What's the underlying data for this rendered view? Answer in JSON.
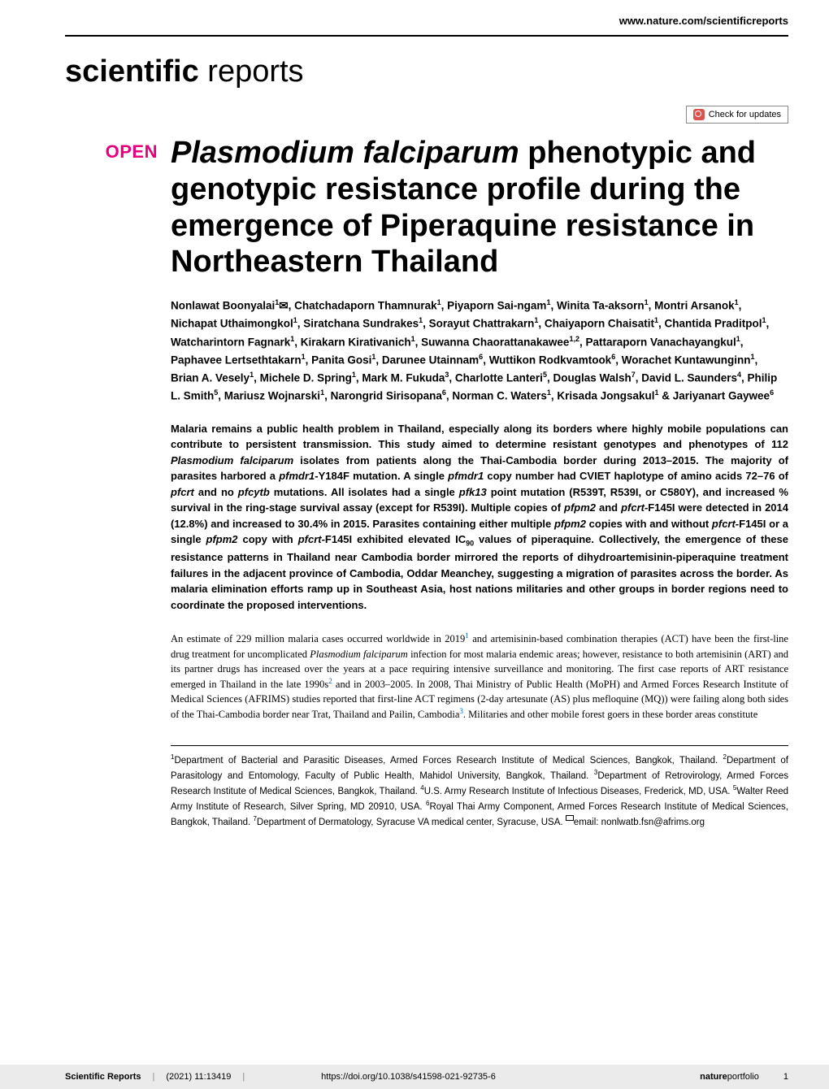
{
  "header": {
    "site_link": "www.nature.com/scientificreports",
    "journal_bold": "scientific",
    "journal_light": " reports",
    "check_updates": "Check for updates",
    "open_label": "OPEN"
  },
  "article": {
    "title_italic": "Plasmodium falciparum",
    "title_rest": " phenotypic and genotypic resistance profile during the emergence of Piperaquine resistance in Northeastern Thailand",
    "authors_html": "Nonlawat Boonyalai<sup>1</sup>✉, Chatchadaporn Thamnurak<sup>1</sup>, Piyaporn Sai-ngam<sup>1</sup>, Winita Ta-aksorn<sup>1</sup>, Montri Arsanok<sup>1</sup>, Nichapat Uthaimongkol<sup>1</sup>, Siratchana Sundrakes<sup>1</sup>, Sorayut Chattrakarn<sup>1</sup>, Chaiyaporn Chaisatit<sup>1</sup>, Chantida Praditpol<sup>1</sup>, Watcharintorn Fagnark<sup>1</sup>, Kirakarn Kirativanich<sup>1</sup>, Suwanna Chaorattanakawee<sup>1,2</sup>, Pattaraporn Vanachayangkul<sup>1</sup>, Paphavee Lertsethtakarn<sup>1</sup>, Panita Gosi<sup>1</sup>, Darunee Utainnam<sup>6</sup>, Wuttikon Rodkvamtook<sup>6</sup>, Worachet Kuntawunginn<sup>1</sup>, Brian A. Vesely<sup>1</sup>, Michele D. Spring<sup>1</sup>, Mark M. Fukuda<sup>3</sup>, Charlotte Lanteri<sup>5</sup>, Douglas Walsh<sup>7</sup>, David L. Saunders<sup>4</sup>, Philip L. Smith<sup>5</sup>, Mariusz Wojnarski<sup>1</sup>, Narongrid Sirisopana<sup>6</sup>, Norman C. Waters<sup>1</sup>, Krisada Jongsakul<sup>1</sup> & Jariyanart Gaywee<sup>6</sup>",
    "abstract": "Malaria remains a public health problem in Thailand, especially along its borders where highly mobile populations can contribute to persistent transmission. This study aimed to determine resistant genotypes and phenotypes of 112 <span class=\"ital\">Plasmodium falciparum</span> isolates from patients along the Thai-Cambodia border during 2013–2015. The majority of parasites harbored a <span class=\"ital\">pfmdr1</span>-Y184F mutation. A single <span class=\"ital\">pfmdr1</span> copy number had CVIET haplotype of amino acids 72–76 of <span class=\"ital\">pfcrt</span> and no <span class=\"ital\">pfcytb</span> mutations. All isolates had a single <span class=\"ital\">pfk13</span> point mutation (R539T, R539I, or C580Y), and increased % survival in the ring-stage survival assay (except for R539I). Multiple copies of <span class=\"ital\">pfpm2</span> and <span class=\"ital\">pfcrt-</span>F145I were detected in 2014 (12.8%) and increased to 30.4% in 2015. Parasites containing either multiple <span class=\"ital\">pfpm2</span> copies with and without <span class=\"ital\">pfcrt-</span>F145I or a single <span class=\"ital\">pfpm2</span> copy with <span class=\"ital\">pfcrt-</span>F145I exhibited elevated IC<sub>90</sub> values of piperaquine. Collectively, the emergence of these resistance patterns in Thailand near Cambodia border mirrored the reports of dihydroartemisinin-piperaquine treatment failures in the adjacent province of Cambodia, Oddar Meanchey, suggesting a migration of parasites across the border. As malaria elimination efforts ramp up in Southeast Asia, host nations militaries and other groups in border regions need to coordinate the proposed interventions.",
    "body": "An estimate of 229 million malaria cases occurred worldwide in 2019<span class=\"ref\">1</span> and artemisinin-based combination therapies (ACT) have been the first-line drug treatment for uncomplicated <span class=\"ital\">Plasmodium falciparum</span> infection for most malaria endemic areas; however, resistance to both artemisinin (ART) and its partner drugs has increased over the years at a pace requiring intensive surveillance and monitoring. The first case reports of ART resistance emerged in Thailand in the late 1990s<span class=\"ref\">2</span> and in 2003–2005. In 2008, Thai Ministry of Public Health (MoPH) and Armed Forces Research Institute of Medical Sciences (AFRIMS) studies reported that first-line ACT regimens (2-day artesunate (AS) plus mefloquine (MQ)) were failing along both sides of the Thai-Cambodia border near Trat, Thailand and Pailin, Cambodia<span class=\"ref\">3</span>. Militaries and other mobile forest goers in these border areas constitute",
    "affiliations": "<sup>1</sup>Department of Bacterial and Parasitic Diseases, Armed Forces Research Institute of Medical Sciences, Bangkok, Thailand. <sup>2</sup>Department of Parasitology and Entomology, Faculty of Public Health, Mahidol University, Bangkok, Thailand. <sup>3</sup>Department of Retrovirology, Armed Forces Research Institute of Medical Sciences, Bangkok, Thailand. <sup>4</sup>U.S. Army Research Institute of Infectious Diseases, Frederick, MD, USA. <sup>5</sup>Walter Reed Army Institute of Research, Silver Spring, MD 20910, USA. <sup>6</sup>Royal Thai Army Component, Armed Forces Research Institute of Medical Sciences, Bangkok, Thailand. <sup>7</sup>Department of Dermatology, Syracuse VA medical center, Syracuse, USA. <span class=\"affil-mail\"></span>email: nonlwatb.fsn@afrims.org"
  },
  "footer": {
    "journal": "Scientific Reports",
    "citation": "(2021) 11:13419",
    "doi": "https://doi.org/10.1038/s41598-021-92735-6",
    "publisher_bold": "nature",
    "publisher_light": "portfolio",
    "page": "1"
  },
  "colors": {
    "accent_pink": "#e6007e",
    "link_blue": "#0066cc",
    "footer_bg": "#ecebeb",
    "update_icon": "#d9534f"
  }
}
